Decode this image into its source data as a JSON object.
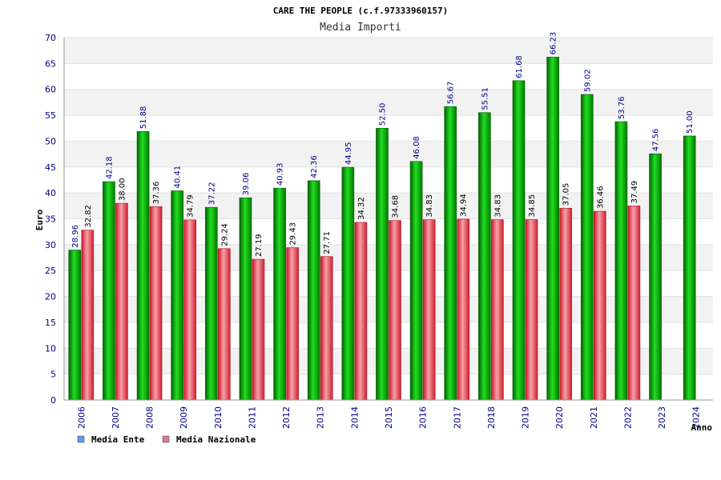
{
  "chart_data": {
    "type": "bar",
    "title": "CARE THE PEOPLE (c.f.97333960157)",
    "subtitle": "Media Importi",
    "xlabel": "Anno",
    "ylabel": "Euro",
    "ylim": [
      0,
      70
    ],
    "yticks": [
      0,
      5,
      10,
      15,
      20,
      25,
      30,
      35,
      40,
      45,
      50,
      55,
      60,
      65,
      70
    ],
    "grid": true,
    "legend_position": "bottom-left",
    "categories": [
      "2006",
      "2007",
      "2008",
      "2009",
      "2010",
      "2011",
      "2012",
      "2013",
      "2014",
      "2015",
      "2016",
      "2017",
      "2018",
      "2019",
      "2020",
      "2021",
      "2022",
      "2023",
      "2024"
    ],
    "series": [
      {
        "name": "Media Ente",
        "legend_color": "#6699ee",
        "bar_color": "#00b400",
        "values": [
          28.96,
          42.18,
          51.88,
          40.41,
          37.22,
          39.06,
          40.93,
          42.36,
          44.95,
          52.5,
          46.08,
          56.67,
          55.51,
          61.68,
          66.23,
          59.02,
          53.76,
          47.56,
          51.0
        ],
        "labels": [
          "28.96",
          "42.18",
          "51.88",
          "40.41",
          "37.22",
          "39.06",
          "40.93",
          "42.36",
          "44.95",
          "52.50",
          "46.08",
          "56.67",
          "55.51",
          "61.68",
          "66.23",
          "59.02",
          "53.76",
          "47.56",
          "51.00"
        ]
      },
      {
        "name": "Media Nazionale",
        "legend_color": "#dd7799",
        "bar_color": "#e83040",
        "values": [
          32.82,
          38.0,
          37.36,
          34.79,
          29.24,
          27.19,
          29.43,
          27.71,
          34.32,
          34.68,
          34.83,
          34.94,
          34.83,
          34.85,
          37.05,
          36.46,
          37.49,
          null,
          null
        ],
        "labels": [
          "32.82",
          "38.00",
          "37.36",
          "34.79",
          "29.24",
          "27.19",
          "29.43",
          "27.71",
          "34.32",
          "34.68",
          "34.83",
          "34.94",
          "34.83",
          "34.85",
          "37.05",
          "36.46",
          "37.49",
          "",
          ""
        ]
      }
    ]
  }
}
